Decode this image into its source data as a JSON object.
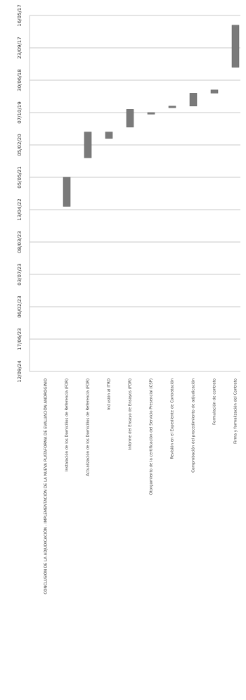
{
  "chart_data": {
    "type": "bar",
    "orientation": "gantt",
    "x_axis_type": "date",
    "tick_labels": [
      "16/05/17",
      "23/09/17",
      "30/06/18",
      "07/10/19",
      "05/02/20",
      "05/05/21",
      "13/04/22",
      "08/03/23",
      "03/07/23",
      "06/02/23",
      "17/06/23",
      "12/09/24"
    ],
    "categories": [
      "CONCLUSIÓN DE LA ADJUDICACIÓN - IMPLEMENTACIÓN DE LA NUEVA PLATAFORMA DE EVALUACIÓN ANDROGINIO",
      "Instalación de los Domicilios de Referencia (FDR)",
      "Actualización de los Domicilios de Referencia (FDR)",
      "Inclusión al ITRD",
      "Informe del Ensayo de Ensayos (FDR)",
      "Otorgamiento de la certificación del Servicio Presencial (CSP)",
      "Revisión en el Expediente de Contratación",
      "Comprobación del procedimiento de adjudicación",
      "Formulación de contrato",
      "Firma y formalización del Contrato"
    ],
    "bars": [
      {
        "start": null,
        "end": null
      },
      {
        "start": 5.0,
        "end": 5.9
      },
      {
        "start": 3.6,
        "end": 4.4
      },
      {
        "start": 3.6,
        "end": 3.8
      },
      {
        "start": 2.9,
        "end": 3.45
      },
      {
        "start": 3.0,
        "end": 3.05
      },
      {
        "start": 2.8,
        "end": 2.85
      },
      {
        "start": 2.4,
        "end": 2.8
      },
      {
        "start": 2.3,
        "end": 2.4
      },
      {
        "start": 0.3,
        "end": 1.6
      }
    ],
    "xlim": [
      0,
      11
    ],
    "grid": true
  },
  "colors": {
    "bar": "#7a7a7a",
    "grid": "#c8c8c8",
    "text": "#333333"
  }
}
